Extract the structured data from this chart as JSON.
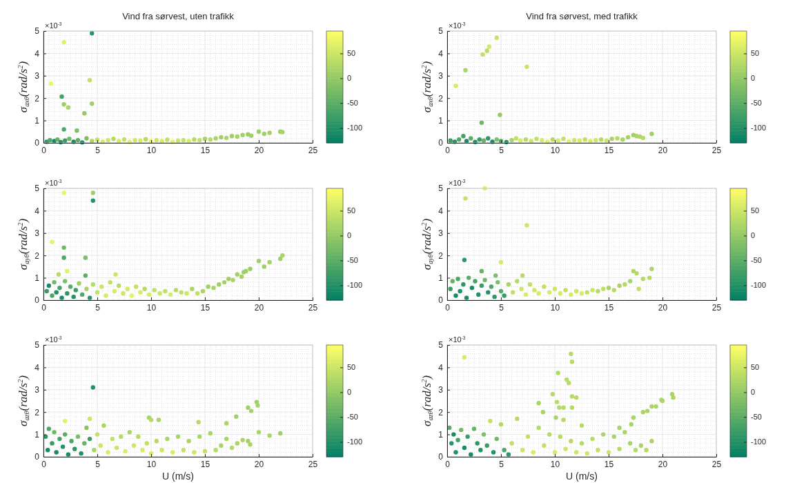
{
  "chart_data": [
    {
      "type": "scatter",
      "title": "Vind fra sørvest, uten trafikk",
      "ylabel": "σ$_{axθ}$(rad/s$^{2}$)",
      "annotations": [
        "×10$^{-3}$"
      ],
      "xlim": [
        0,
        25
      ],
      "ylim": [
        0,
        5
      ],
      "xticks": [
        0,
        5,
        10,
        15,
        20,
        25
      ],
      "yticks": [
        0,
        1,
        2,
        3,
        4,
        5
      ],
      "clim": [
        -130,
        95
      ],
      "cticks": [
        -100,
        -50,
        0,
        50
      ],
      "grid": true,
      "marker": "circle",
      "x": [
        4.5,
        1.9,
        0.7,
        4.3,
        1.7,
        1.9,
        2.3,
        4.5,
        3.8,
        1.9,
        3.1,
        0.3,
        0.6,
        1.0,
        1.3,
        1.6,
        2.0,
        2.4,
        2.8,
        3.2,
        3.6,
        4.0,
        4.5,
        5.0,
        5.5,
        6.0,
        6.5,
        7.0,
        7.5,
        8.0,
        8.5,
        9.0,
        9.5,
        10,
        10.5,
        11,
        11.5,
        12,
        12.5,
        13,
        13.5,
        14,
        14.5,
        15,
        15.5,
        16,
        16.5,
        17,
        17.5,
        18,
        18.5,
        19,
        19.3,
        20,
        20.5,
        21,
        22,
        22.2
      ],
      "values": [
        4.9,
        4.5,
        2.65,
        2.8,
        2.07,
        1.72,
        1.58,
        1.75,
        1.32,
        0.6,
        0.55,
        0.05,
        0.12,
        0.08,
        0.15,
        0.03,
        0.1,
        0.18,
        0.05,
        0.12,
        0.02,
        0.2,
        0.08,
        0.14,
        0.05,
        0.12,
        0.18,
        0.08,
        0.15,
        0.05,
        0.12,
        0.1,
        0.16,
        0.06,
        0.12,
        0.08,
        0.14,
        0.05,
        0.1,
        0.12,
        0.08,
        0.15,
        0.12,
        0.18,
        0.15,
        0.2,
        0.25,
        0.22,
        0.3,
        0.28,
        0.35,
        0.38,
        0.32,
        0.5,
        0.4,
        0.45,
        0.5,
        0.48
      ],
      "cvalues": [
        -90,
        70,
        75,
        40,
        -70,
        10,
        20,
        10,
        0,
        -60,
        -20,
        -90,
        -60,
        -110,
        -40,
        -100,
        -80,
        -30,
        -110,
        -50,
        -100,
        -20,
        20,
        40,
        60,
        50,
        30,
        60,
        40,
        70,
        50,
        60,
        30,
        70,
        50,
        60,
        40,
        70,
        50,
        40,
        60,
        30,
        40,
        20,
        30,
        20,
        10,
        20,
        10,
        15,
        10,
        5,
        10,
        10,
        10,
        15,
        10,
        20
      ]
    },
    {
      "type": "scatter",
      "title": "Vind fra sørvest, med trafikk",
      "ylabel": "σ$_{axθ}$(rad/s$^{2}$)",
      "annotations": [
        "×10$^{-3}$"
      ],
      "xlim": [
        0,
        25
      ],
      "ylim": [
        0,
        5
      ],
      "xticks": [
        0,
        5,
        10,
        15,
        20,
        25
      ],
      "yticks": [
        0,
        1,
        2,
        3,
        4,
        5
      ],
      "clim": [
        -130,
        95
      ],
      "cticks": [
        -100,
        -50,
        0,
        50
      ],
      "grid": true,
      "marker": "circle",
      "x": [
        4.6,
        3.7,
        3.3,
        3.9,
        1.7,
        0.8,
        7.4,
        4.9,
        3.2,
        0.3,
        0.7,
        1.1,
        1.5,
        1.8,
        2.2,
        2.6,
        3.0,
        3.4,
        3.8,
        4.2,
        4.6,
        5.0,
        5.5,
        6.0,
        6.4,
        6.8,
        7.3,
        7.8,
        8.3,
        8.8,
        9.3,
        9.8,
        10.3,
        10.8,
        11.3,
        11.8,
        12.3,
        12.8,
        13.3,
        13.8,
        14.3,
        14.8,
        15.3,
        15.8,
        16.3,
        16.8,
        17.3,
        17.6,
        17.9,
        18.2,
        19
      ],
      "values": [
        4.7,
        4.12,
        3.95,
        4.3,
        3.25,
        2.55,
        3.4,
        1.25,
        0.9,
        0.1,
        0.05,
        0.15,
        0.3,
        0.08,
        0.2,
        0.04,
        0.15,
        0.1,
        0.2,
        0.05,
        0.15,
        0.08,
        0.03,
        0.12,
        0.2,
        0.1,
        0.15,
        0.08,
        0.18,
        0.12,
        0.05,
        0.15,
        0.1,
        0.18,
        0.06,
        0.12,
        0.1,
        0.15,
        0.08,
        0.12,
        0.15,
        0.1,
        0.18,
        0.2,
        0.15,
        0.25,
        0.35,
        0.3,
        0.28,
        0.22,
        0.4
      ],
      "cvalues": [
        45,
        35,
        40,
        55,
        20,
        60,
        45,
        0,
        -30,
        -80,
        -100,
        -60,
        -70,
        -110,
        -50,
        -100,
        -80,
        -40,
        -90,
        -110,
        -20,
        -60,
        -100,
        20,
        40,
        60,
        30,
        50,
        40,
        60,
        70,
        30,
        60,
        40,
        70,
        50,
        60,
        40,
        60,
        50,
        30,
        50,
        20,
        30,
        20,
        15,
        10,
        20,
        25,
        30,
        10
      ]
    },
    {
      "type": "scatter",
      "ylabel": "σ$_{ayθ}$(rad/s$^{2}$)",
      "annotations": [
        "×10$^{-3}$"
      ],
      "xlim": [
        0,
        25
      ],
      "ylim": [
        0,
        5
      ],
      "xticks": [
        0,
        5,
        10,
        15,
        20,
        25
      ],
      "yticks": [
        0,
        1,
        2,
        3,
        4,
        5
      ],
      "clim": [
        -130,
        95
      ],
      "cticks": [
        -100,
        -50,
        0,
        50
      ],
      "grid": true,
      "marker": "circle",
      "x": [
        1.9,
        4.6,
        4.6,
        0.8,
        1.9,
        1.9,
        3.9,
        3.9,
        6.7,
        1.4,
        2.2,
        0.3,
        0.5,
        0.8,
        1.0,
        1.2,
        1.5,
        1.7,
        2.0,
        2.2,
        2.5,
        2.8,
        3.0,
        3.3,
        3.6,
        4.0,
        4.3,
        4.6,
        5.0,
        5.4,
        5.8,
        6.2,
        6.6,
        7.0,
        7.4,
        7.8,
        8.2,
        8.6,
        9.0,
        9.4,
        9.8,
        10.3,
        10.8,
        11.3,
        11.8,
        12.3,
        12.8,
        13.3,
        13.8,
        14.3,
        14.8,
        15.3,
        15.8,
        16.3,
        16.8,
        17.2,
        17.6,
        18.0,
        18.4,
        18.8,
        19.2,
        18.6,
        20,
        20.5,
        21,
        22,
        22.2
      ],
      "values": [
        4.8,
        4.8,
        4.45,
        2.6,
        2.35,
        1.9,
        1.9,
        1.1,
        1.15,
        1.15,
        1.3,
        0.4,
        0.65,
        0.2,
        0.8,
        0.35,
        0.55,
        0.1,
        0.85,
        0.3,
        0.6,
        0.15,
        0.45,
        0.75,
        0.25,
        0.5,
        0.1,
        0.7,
        0.35,
        0.6,
        0.2,
        0.8,
        0.4,
        0.65,
        0.3,
        0.5,
        0.2,
        0.6,
        0.35,
        0.5,
        0.25,
        0.45,
        0.3,
        0.4,
        0.25,
        0.45,
        0.35,
        0.3,
        0.5,
        0.3,
        0.4,
        0.6,
        0.55,
        0.7,
        0.8,
        0.95,
        0.9,
        1.15,
        1.05,
        1.3,
        1.4,
        1.25,
        1.75,
        1.5,
        1.7,
        1.85,
        2.0
      ],
      "cvalues": [
        75,
        10,
        -100,
        75,
        -30,
        -60,
        -20,
        -50,
        50,
        30,
        70,
        -80,
        -110,
        -60,
        -30,
        -100,
        -70,
        -110,
        -20,
        -90,
        -50,
        -100,
        -80,
        10,
        -60,
        20,
        -90,
        30,
        40,
        50,
        60,
        40,
        60,
        30,
        50,
        60,
        70,
        40,
        60,
        30,
        60,
        40,
        50,
        40,
        60,
        30,
        40,
        50,
        20,
        40,
        20,
        10,
        20,
        10,
        15,
        10,
        20,
        10,
        15,
        10,
        5,
        10,
        10,
        10,
        15,
        10,
        20
      ]
    },
    {
      "type": "scatter",
      "ylabel": "σ$_{ayθ}$(rad/s$^{2}$)",
      "annotations": [
        "×10$^{-3}$"
      ],
      "xlim": [
        0,
        25
      ],
      "ylim": [
        0,
        5
      ],
      "xticks": [
        0,
        5,
        10,
        15,
        20,
        25
      ],
      "yticks": [
        0,
        1,
        2,
        3,
        4,
        5
      ],
      "clim": [
        -130,
        95
      ],
      "cticks": [
        -100,
        -50,
        0,
        50
      ],
      "grid": true,
      "marker": "circle",
      "x": [
        3.5,
        1.7,
        7.4,
        1.6,
        5.0,
        3.2,
        4.5,
        7.0,
        0.3,
        0.5,
        0.8,
        1.0,
        1.2,
        1.5,
        1.8,
        2.0,
        2.3,
        2.6,
        2.9,
        3.2,
        3.5,
        3.8,
        4.1,
        4.4,
        4.7,
        5.0,
        5.3,
        5.7,
        6.1,
        6.5,
        6.9,
        7.3,
        7.7,
        8.1,
        8.5,
        9.0,
        9.5,
        10.0,
        10.5,
        11.0,
        11.5,
        12.0,
        12.5,
        13.0,
        13.5,
        14.0,
        14.5,
        15.0,
        15.5,
        16.0,
        16.5,
        17.0,
        17.3,
        17.6,
        17.8,
        18.2,
        18.8,
        19.0
      ],
      "values": [
        5.0,
        4.55,
        3.35,
        1.8,
        1.7,
        1.3,
        1.1,
        1.1,
        0.5,
        0.85,
        0.2,
        0.95,
        0.4,
        0.7,
        0.1,
        1.0,
        0.55,
        0.85,
        0.25,
        0.65,
        0.9,
        0.35,
        0.6,
        0.15,
        0.8,
        0.4,
        0.2,
        0.7,
        0.35,
        0.85,
        0.5,
        0.25,
        0.7,
        0.45,
        0.3,
        0.6,
        0.35,
        0.5,
        0.3,
        0.45,
        0.25,
        0.4,
        0.3,
        0.35,
        0.45,
        0.4,
        0.5,
        0.55,
        0.45,
        0.65,
        0.7,
        0.85,
        1.3,
        1.2,
        0.5,
        0.95,
        1.0,
        1.4
      ],
      "cvalues": [
        70,
        40,
        50,
        -90,
        60,
        -40,
        -20,
        30,
        -80,
        -40,
        -110,
        -60,
        -100,
        -90,
        -110,
        -50,
        -110,
        -70,
        -100,
        -80,
        -30,
        -100,
        -60,
        -90,
        -20,
        -50,
        -80,
        20,
        40,
        30,
        50,
        60,
        40,
        50,
        60,
        40,
        60,
        50,
        60,
        40,
        60,
        50,
        60,
        40,
        50,
        30,
        40,
        20,
        30,
        20,
        30,
        20,
        25,
        30,
        40,
        30,
        30,
        20
      ]
    },
    {
      "type": "scatter",
      "xlabel": "U (m/s)",
      "ylabel": "σ$_{azθ}$(rad/s$^{2}$)",
      "annotations": [
        "×10$^{-3}$"
      ],
      "xlim": [
        0,
        25
      ],
      "ylim": [
        0,
        5
      ],
      "xticks": [
        0,
        5,
        10,
        15,
        20,
        25
      ],
      "yticks": [
        0,
        1,
        2,
        3,
        4,
        5
      ],
      "clim": [
        -130,
        95
      ],
      "cticks": [
        -100,
        -50,
        0,
        50
      ],
      "grid": true,
      "marker": "circle",
      "x": [
        4.6,
        2.0,
        4.3,
        9.8,
        10.0,
        10.7,
        14.4,
        17.0,
        17.9,
        19.0,
        19.3,
        19.8,
        19.9,
        20.0,
        21.0,
        22.0,
        0.2,
        0.4,
        0.5,
        0.8,
        1.0,
        1.2,
        1.5,
        1.8,
        2.0,
        2.3,
        2.6,
        2.9,
        3.2,
        3.5,
        3.8,
        4.0,
        4.3,
        4.7,
        5.0,
        5.3,
        5.6,
        6.0,
        6.4,
        6.8,
        7.2,
        7.6,
        8.0,
        8.4,
        8.8,
        9.2,
        9.6,
        10.0,
        10.5,
        11.0,
        11.5,
        12.0,
        12.5,
        13.0,
        13.5,
        14.0,
        14.5,
        15.0,
        15.5,
        16.0,
        16.5,
        17.0,
        17.5,
        18.0,
        18.5,
        19.0,
        19.2
      ],
      "values": [
        3.1,
        1.6,
        1.7,
        1.75,
        1.65,
        1.65,
        1.55,
        1.5,
        1.8,
        2.2,
        2.05,
        2.45,
        2.3,
        1.1,
        0.95,
        1.05,
        0.9,
        0.3,
        1.25,
        0.6,
        1.1,
        0.2,
        0.8,
        0.45,
        1.0,
        0.1,
        0.7,
        0.35,
        0.9,
        0.15,
        0.6,
        1.3,
        0.8,
        0.3,
        1.0,
        0.5,
        1.4,
        0.2,
        0.8,
        0.4,
        0.9,
        0.25,
        1.1,
        0.5,
        0.9,
        0.3,
        0.6,
        0.15,
        0.7,
        0.3,
        0.8,
        0.2,
        0.9,
        0.3,
        0.7,
        0.2,
        0.9,
        0.25,
        1.05,
        0.3,
        0.5,
        0.8,
        0.4,
        0.6,
        0.75,
        0.7,
        0.55
      ],
      "cvalues": [
        -100,
        70,
        50,
        20,
        30,
        20,
        30,
        20,
        10,
        10,
        15,
        10,
        15,
        20,
        20,
        10,
        -90,
        -110,
        -60,
        -80,
        -30,
        -110,
        -70,
        -100,
        -50,
        -110,
        -60,
        -90,
        -20,
        -100,
        -40,
        -10,
        -80,
        20,
        40,
        50,
        20,
        60,
        40,
        50,
        30,
        60,
        20,
        50,
        30,
        60,
        40,
        60,
        30,
        50,
        20,
        60,
        20,
        40,
        20,
        50,
        20,
        40,
        20,
        30,
        20,
        20,
        30,
        20,
        20,
        15,
        20
      ]
    },
    {
      "type": "scatter",
      "xlabel": "U (m/s)",
      "ylabel": "σ$_{azθ}$(rad/s$^{2}$)",
      "annotations": [
        "×10$^{-3}$"
      ],
      "xlim": [
        0,
        25
      ],
      "ylim": [
        0,
        5
      ],
      "xticks": [
        0,
        5,
        10,
        15,
        20,
        25
      ],
      "yticks": [
        0,
        1,
        2,
        3,
        4,
        5
      ],
      "clim": [
        -130,
        95
      ],
      "cticks": [
        -100,
        -50,
        0,
        50
      ],
      "grid": true,
      "marker": "circle",
      "x": [
        1.6,
        11.5,
        11.6,
        10.3,
        11.1,
        11.3,
        9.8,
        11.6,
        12.0,
        10.2,
        8.5,
        10.4,
        10.8,
        11.6,
        8.9,
        10.1,
        10.8,
        12.5,
        20.9,
        21.0,
        19.9,
        20.0,
        19.0,
        19.4,
        18.2,
        18.6,
        17.3,
        17.1,
        16.0,
        0.2,
        0.4,
        0.6,
        0.8,
        1.0,
        1.3,
        1.6,
        1.9,
        2.2,
        2.5,
        2.8,
        3.1,
        3.4,
        3.7,
        4.0,
        4.3,
        4.6,
        5.0,
        5.3,
        5.7,
        6.0,
        6.5,
        7.0,
        7.5,
        8.0,
        8.5,
        9.0,
        9.5,
        10.0,
        10.5,
        11.0,
        11.5,
        12.0,
        12.5,
        13.0,
        13.5,
        14.0,
        14.5,
        15.0,
        15.5,
        16.0,
        16.5,
        17.0,
        17.5,
        18.0,
        18.5,
        19.0
      ],
      "values": [
        4.45,
        4.6,
        4.25,
        3.75,
        3.45,
        3.3,
        2.8,
        2.7,
        2.65,
        2.45,
        2.4,
        2.2,
        2.2,
        2.2,
        2.0,
        1.75,
        1.65,
        1.4,
        2.8,
        2.65,
        2.55,
        2.5,
        2.25,
        2.25,
        2.0,
        2.05,
        1.75,
        1.45,
        1.3,
        1.3,
        0.6,
        1.0,
        0.2,
        0.75,
        1.2,
        0.4,
        0.9,
        0.1,
        1.25,
        0.6,
        0.3,
        1.0,
        0.5,
        1.6,
        0.2,
        0.8,
        1.45,
        0.3,
        0.1,
        0.6,
        1.7,
        0.3,
        0.9,
        0.2,
        1.3,
        0.5,
        1.0,
        0.2,
        0.9,
        0.35,
        0.7,
        0.2,
        0.6,
        0.15,
        0.8,
        0.3,
        1.0,
        0.2,
        0.9,
        0.35,
        1.1,
        0.6,
        0.3,
        0.5,
        0.3,
        0.7
      ],
      "cvalues": [
        60,
        30,
        30,
        30,
        30,
        30,
        30,
        30,
        30,
        30,
        20,
        30,
        30,
        30,
        20,
        20,
        30,
        30,
        20,
        20,
        20,
        20,
        20,
        20,
        20,
        20,
        20,
        20,
        20,
        -50,
        -90,
        -110,
        -100,
        -70,
        -30,
        -110,
        -80,
        -110,
        -40,
        -90,
        -100,
        -20,
        -80,
        40,
        -100,
        -30,
        30,
        -60,
        -90,
        40,
        30,
        50,
        40,
        60,
        30,
        40,
        30,
        60,
        30,
        50,
        30,
        50,
        30,
        50,
        30,
        40,
        20,
        50,
        20,
        30,
        20,
        20,
        30,
        20,
        30,
        20
      ]
    }
  ]
}
